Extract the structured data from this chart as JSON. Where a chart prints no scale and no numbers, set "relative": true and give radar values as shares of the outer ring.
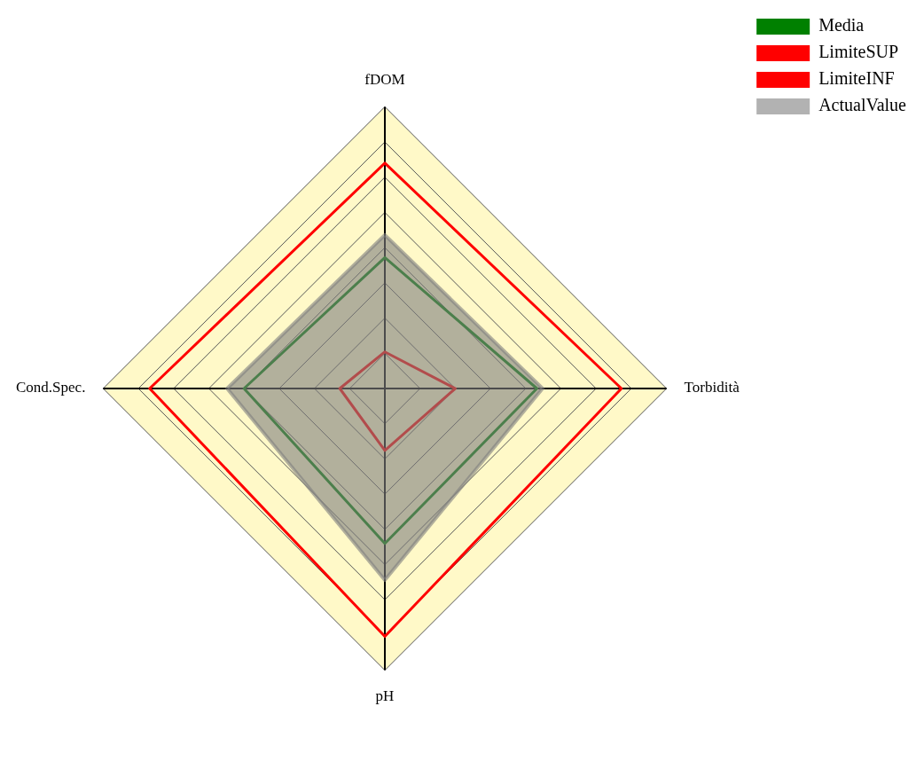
{
  "chart_data": {
    "type": "radar",
    "relative": true,
    "legend": "top right",
    "categories": [
      "fDOM",
      "Torbidità",
      "pH",
      "Cond.Spec."
    ],
    "series": [
      {
        "name": "Media",
        "color": "#008000",
        "values": [
          0.465,
          0.54,
          0.55,
          0.5
        ]
      },
      {
        "name": "LimiteSUP",
        "color": "#ff0000",
        "values": [
          0.8,
          0.84,
          0.88,
          0.835
        ]
      },
      {
        "name": "LimiteINF",
        "color": "#ff0000",
        "values": [
          0.13,
          0.25,
          0.22,
          0.16
        ]
      },
      {
        "name": "ActualValue",
        "type": "area",
        "color": "#7f7f7f",
        "values": [
          0.545,
          0.56,
          0.68,
          0.56
        ]
      }
    ]
  }
}
